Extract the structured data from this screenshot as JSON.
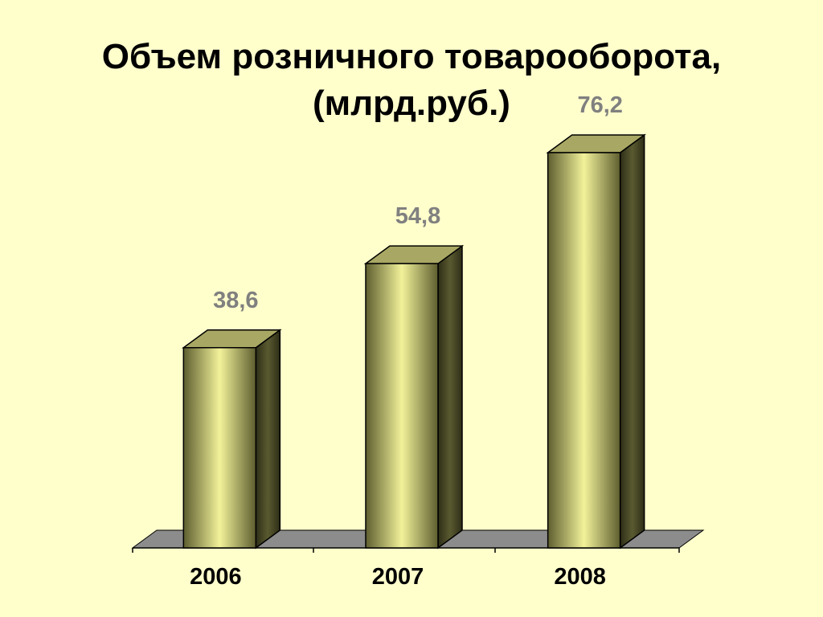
{
  "chart_data": {
    "type": "bar3d",
    "title": "Объем розничного товарооборота, (млрд.руб.)",
    "categories": [
      "2006",
      "2007",
      "2008"
    ],
    "values": [
      38.6,
      54.8,
      76.2
    ],
    "value_labels": [
      "38,6",
      "54,8",
      "76,2"
    ]
  }
}
